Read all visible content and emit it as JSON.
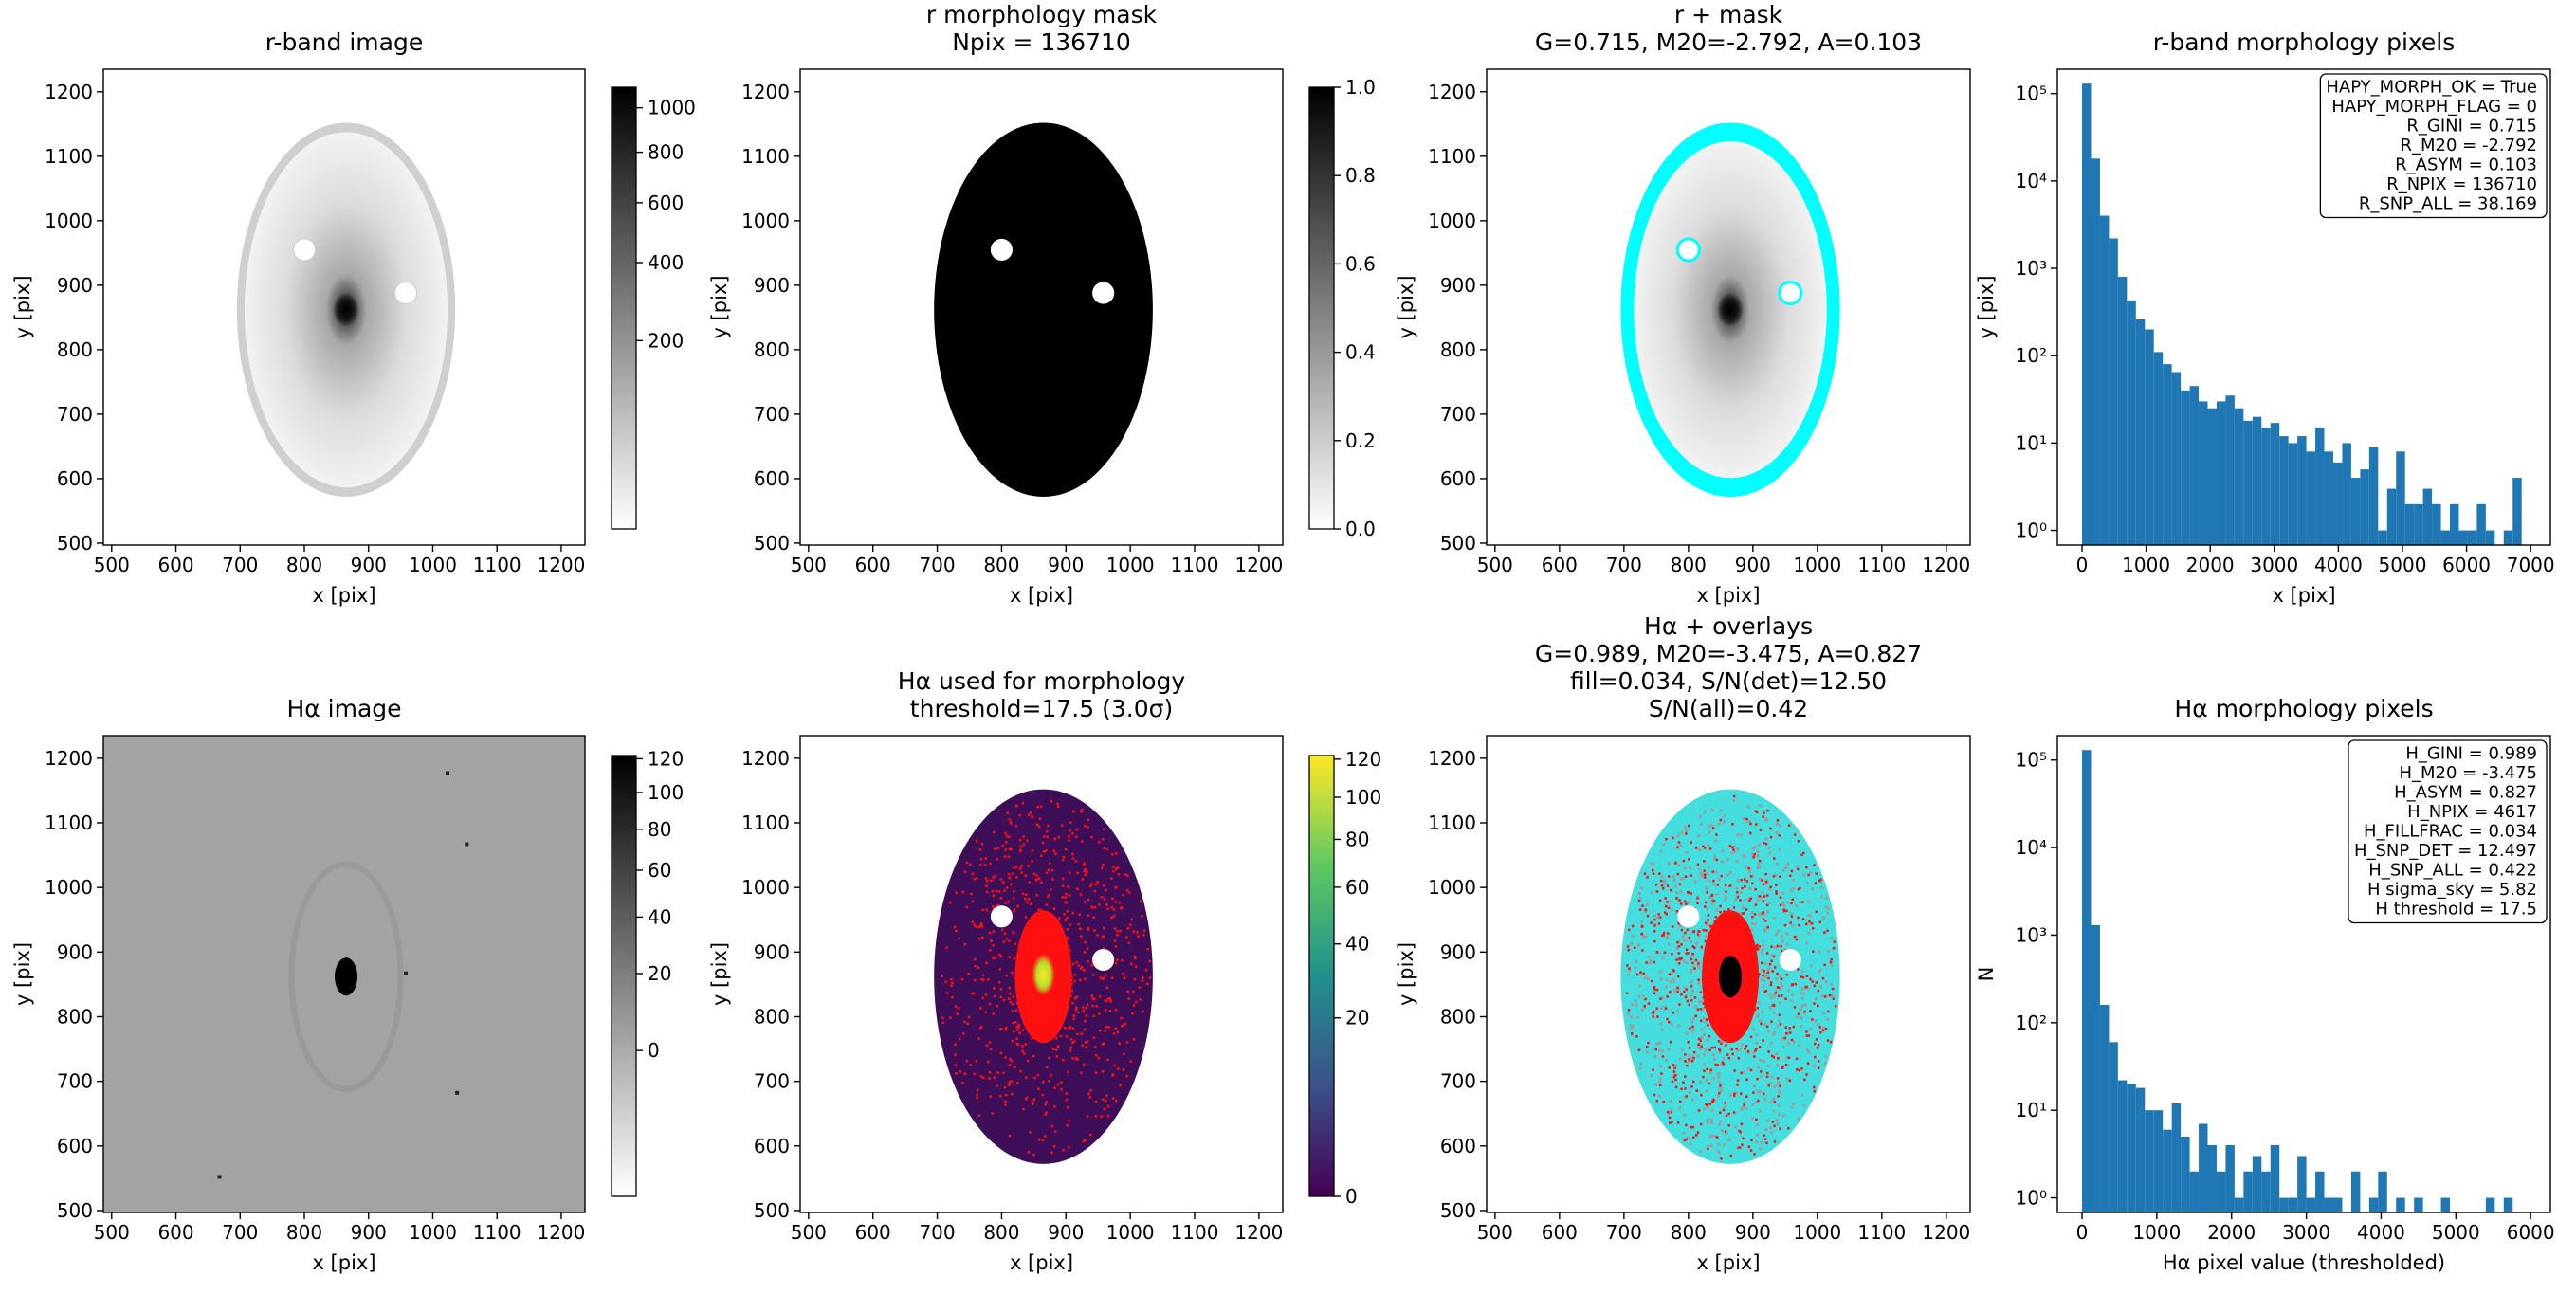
{
  "chart_data": [
    {
      "type": "image",
      "title": [
        "r-band image"
      ],
      "xlabel": "x [pix]",
      "ylabel": "y [pix]",
      "xlim": [
        487,
        1237
      ],
      "ylim": [
        497,
        1235
      ],
      "xticks": [
        500,
        600,
        700,
        800,
        900,
        1000,
        1100,
        1200
      ],
      "yticks": [
        500,
        600,
        700,
        800,
        900,
        1000,
        1100,
        1200
      ],
      "colorbar": {
        "cmap": "gray",
        "scale": "sqrt",
        "lim": [
          0,
          1100
        ],
        "ticks": [
          200,
          400,
          600,
          800,
          1000
        ]
      }
    },
    {
      "type": "image",
      "title": [
        "r morphology mask",
        "Npix = 136710"
      ],
      "xlabel": "x [pix]",
      "ylabel": "y [pix]",
      "xlim": [
        487,
        1237
      ],
      "ylim": [
        497,
        1235
      ],
      "xticks": [
        500,
        600,
        700,
        800,
        900,
        1000,
        1100,
        1200
      ],
      "yticks": [
        500,
        600,
        700,
        800,
        900,
        1000,
        1100,
        1200
      ],
      "colorbar": {
        "cmap": "gray",
        "scale": "linear",
        "lim": [
          0,
          1
        ],
        "ticks": [
          {
            "value": 0,
            "label": "0.0"
          },
          0.2,
          0.4,
          0.6,
          0.8,
          {
            "value": 1,
            "label": "1.0"
          }
        ]
      }
    },
    {
      "type": "image",
      "title": [
        "r + mask",
        "G=0.715, M20=-2.792, A=0.103"
      ],
      "xlabel": "x [pix]",
      "ylabel": "y [pix]",
      "xlim": [
        487,
        1237
      ],
      "ylim": [
        497,
        1235
      ],
      "xticks": [
        500,
        600,
        700,
        800,
        900,
        1000,
        1100,
        1200
      ],
      "yticks": [
        500,
        600,
        700,
        800,
        900,
        1000,
        1100,
        1200
      ]
    },
    {
      "type": "histogram",
      "title": [
        "r-band morphology pixels"
      ],
      "xlabel": "x [pix]",
      "ylabel": "y [pix]",
      "color": "#1f77b4",
      "log_y": true,
      "xlim": [
        -385,
        7308
      ],
      "ylim": [
        0.68,
        190000
      ],
      "xticks": [
        0,
        1000,
        2000,
        3000,
        4000,
        5000,
        6000,
        7000
      ],
      "yticks": [
        {
          "value": 1,
          "label": "10⁰"
        },
        {
          "value": 10,
          "label": "10¹"
        },
        {
          "value": 100,
          "label": "10²"
        },
        {
          "value": 1000,
          "label": "10³"
        },
        {
          "value": 10000,
          "label": "10⁴"
        },
        {
          "value": 100000,
          "label": "10⁵"
        }
      ],
      "bins": [
        0,
        140,
        280,
        420,
        560,
        700,
        840,
        980,
        1120,
        1260,
        1400,
        1540,
        1680,
        1820,
        1960,
        2100,
        2240,
        2380,
        2520,
        2660,
        2800,
        2940,
        3080,
        3220,
        3360,
        3500,
        3640,
        3780,
        3920,
        4060,
        4200,
        4340,
        4480,
        4620,
        4760,
        4900,
        5040,
        5180,
        5320,
        5460,
        5600,
        5740,
        5880,
        6020,
        6160,
        6300,
        6440,
        6580,
        6720,
        6860
      ],
      "counts": [
        130000,
        18000,
        4000,
        2200,
        800,
        430,
        260,
        200,
        110,
        80,
        65,
        40,
        45,
        30,
        25,
        30,
        35,
        25,
        18,
        20,
        15,
        17,
        12,
        10,
        12,
        8,
        15,
        8,
        6,
        10,
        4,
        5,
        9,
        1,
        3,
        8,
        2,
        2,
        3,
        2,
        1,
        2,
        1,
        1,
        2,
        1,
        0,
        1,
        4
      ],
      "annotation": [
        "HAPY_MORPH_OK = True",
        "HAPY_MORPH_FLAG = 0",
        "R_GINI = 0.715",
        "R_M20 = -2.792",
        "R_ASYM = 0.103",
        "R_NPIX = 136710",
        "R_SNP_ALL = 38.169"
      ]
    },
    {
      "type": "image",
      "title": [
        "Hα image"
      ],
      "xlabel": "x [pix]",
      "ylabel": "y [pix]",
      "xlim": [
        487,
        1237
      ],
      "ylim": [
        497,
        1235
      ],
      "xticks": [
        500,
        600,
        700,
        800,
        900,
        1000,
        1100,
        1200
      ],
      "yticks": [
        500,
        600,
        700,
        800,
        900,
        1000,
        1100,
        1200
      ],
      "colorbar": {
        "cmap": "gray",
        "scale": "sqrt",
        "lim": [
          -15,
          122
        ],
        "ticks": [
          0,
          20,
          40,
          60,
          80,
          100,
          120
        ]
      }
    },
    {
      "type": "image",
      "title": [
        "Hα used for morphology",
        "threshold=17.5 (3.0σ)"
      ],
      "xlabel": "x [pix]",
      "ylabel": "y [pix]",
      "xlim": [
        487,
        1237
      ],
      "ylim": [
        497,
        1235
      ],
      "xticks": [
        500,
        600,
        700,
        800,
        900,
        1000,
        1100,
        1200
      ],
      "yticks": [
        500,
        600,
        700,
        800,
        900,
        1000,
        1100,
        1200
      ],
      "colorbar": {
        "cmap": "viridis",
        "scale": "sqrt",
        "lim": [
          0,
          122
        ],
        "ticks": [
          0,
          20,
          40,
          60,
          80,
          100,
          120
        ]
      }
    },
    {
      "type": "image",
      "title": [
        "Hα + overlays",
        "G=0.989, M20=-3.475, A=0.827",
        "fill=0.034, S/N(det)=12.50",
        "S/N(all)=0.42"
      ],
      "xlabel": "x [pix]",
      "ylabel": "y [pix]",
      "xlim": [
        487,
        1237
      ],
      "ylim": [
        497,
        1235
      ],
      "xticks": [
        500,
        600,
        700,
        800,
        900,
        1000,
        1100,
        1200
      ],
      "yticks": [
        500,
        600,
        700,
        800,
        900,
        1000,
        1100,
        1200
      ]
    },
    {
      "type": "histogram",
      "title": [
        "Hα morphology pixels"
      ],
      "xlabel": "Hα pixel value (thresholded)",
      "ylabel": "N",
      "color": "#1f77b4",
      "log_y": true,
      "xlim": [
        -330,
        6264
      ],
      "ylim": [
        0.68,
        190000
      ],
      "xticks": [
        0,
        1000,
        2000,
        3000,
        4000,
        5000,
        6000
      ],
      "yticks": [
        {
          "value": 1,
          "label": "10⁰"
        },
        {
          "value": 10,
          "label": "10¹"
        },
        {
          "value": 100,
          "label": "10²"
        },
        {
          "value": 1000,
          "label": "10³"
        },
        {
          "value": 10000,
          "label": "10⁴"
        },
        {
          "value": 100000,
          "label": "10⁵"
        }
      ],
      "bins": [
        0,
        120,
        240,
        360,
        480,
        600,
        720,
        840,
        960,
        1080,
        1200,
        1320,
        1440,
        1560,
        1680,
        1800,
        1920,
        2040,
        2160,
        2280,
        2400,
        2520,
        2640,
        2760,
        2880,
        3000,
        3120,
        3240,
        3360,
        3480,
        3600,
        3720,
        3840,
        3960,
        4080,
        4200,
        4320,
        4440,
        4560,
        4680,
        4800,
        4920,
        5040,
        5160,
        5280,
        5400,
        5520,
        5640,
        5760
      ],
      "counts": [
        130000,
        1300,
        160,
        60,
        22,
        20,
        18,
        10,
        10,
        6,
        12,
        5,
        2,
        7,
        4,
        2,
        4,
        1,
        2,
        3,
        2,
        4,
        1,
        1,
        3,
        1,
        2,
        1,
        1,
        0,
        2,
        0,
        1,
        2,
        0,
        1,
        0,
        1,
        0,
        0,
        1,
        0,
        0,
        0,
        0,
        1,
        0,
        1
      ],
      "annotation": [
        "H_GINI = 0.989",
        "H_M20 = -3.475",
        "H_ASYM = 0.827",
        "H_NPIX = 4617",
        "H_FILLFRAC = 0.034",
        "H_SNP_DET = 12.497",
        "H_SNP_ALL = 0.422",
        "H sigma_sky = 5.82",
        "H threshold = 17.5"
      ]
    }
  ]
}
